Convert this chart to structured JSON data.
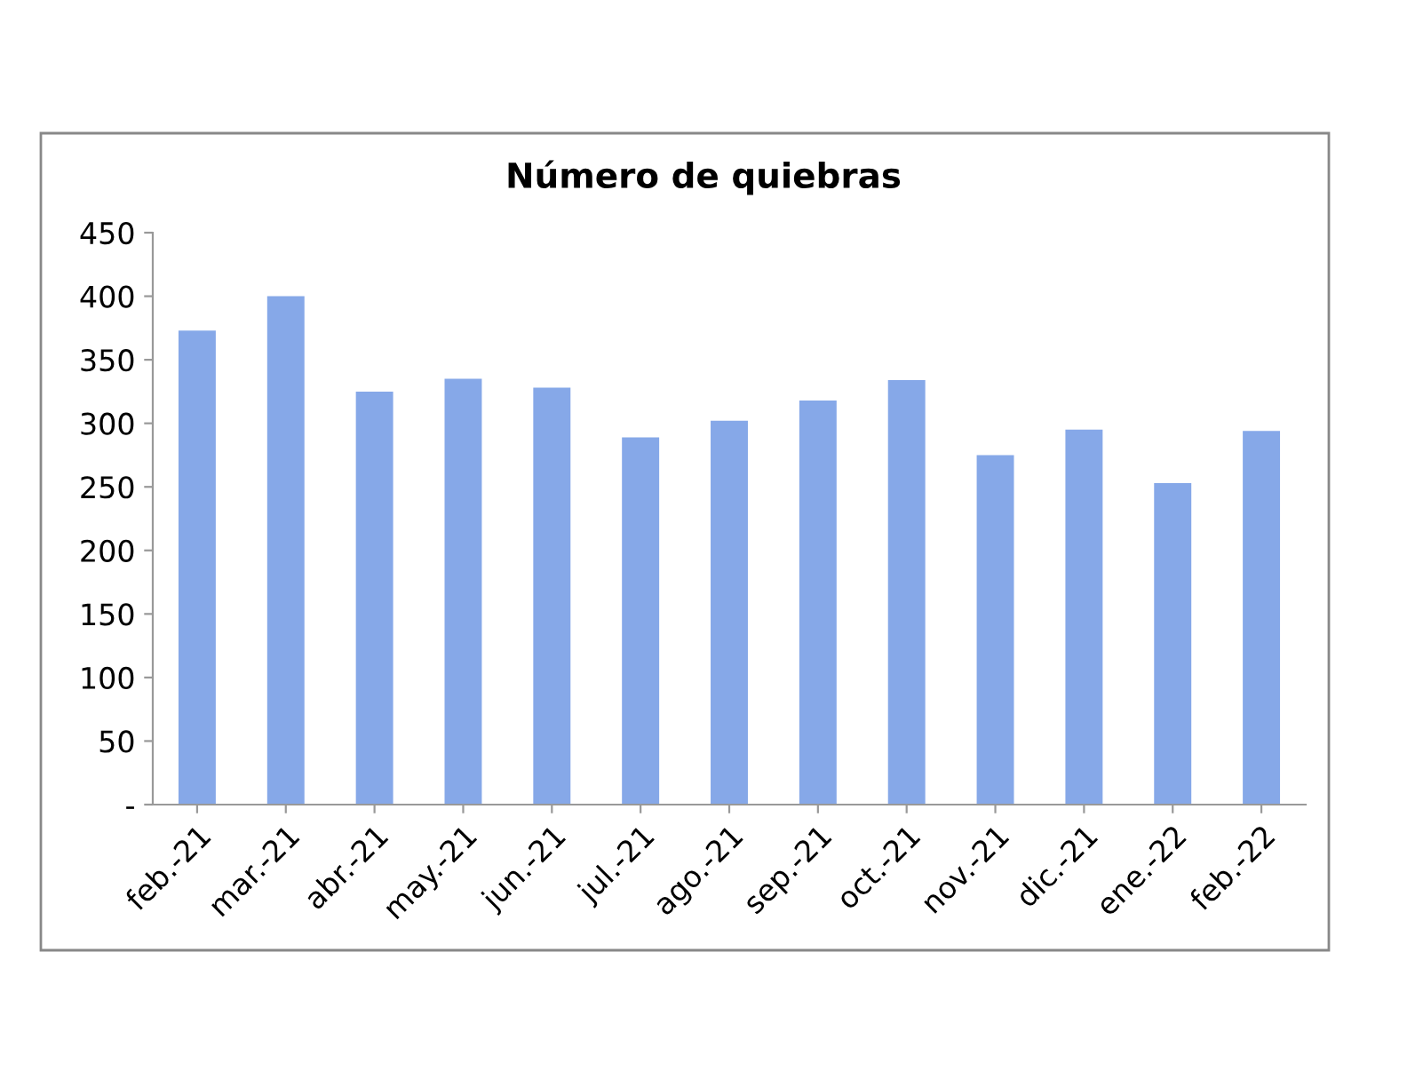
{
  "chart_data": {
    "type": "bar",
    "title": "Número de quiebras",
    "categories": [
      "feb.-21",
      "mar.-21",
      "abr.-21",
      "may.-21",
      "jun.-21",
      "jul.-21",
      "ago.-21",
      "sep.-21",
      "oct.-21",
      "nov.-21",
      "dic.-21",
      "ene.-22",
      "feb.-22"
    ],
    "values": [
      373,
      400,
      325,
      335,
      328,
      289,
      302,
      318,
      334,
      275,
      295,
      253,
      294
    ],
    "color": "#86a8e8",
    "ylim": [
      0,
      450
    ],
    "yticks": [
      {
        "value": 0,
        "label": "-"
      },
      50,
      100,
      150,
      200,
      250,
      300,
      350,
      400,
      450
    ],
    "grid": false,
    "legend": false
  }
}
